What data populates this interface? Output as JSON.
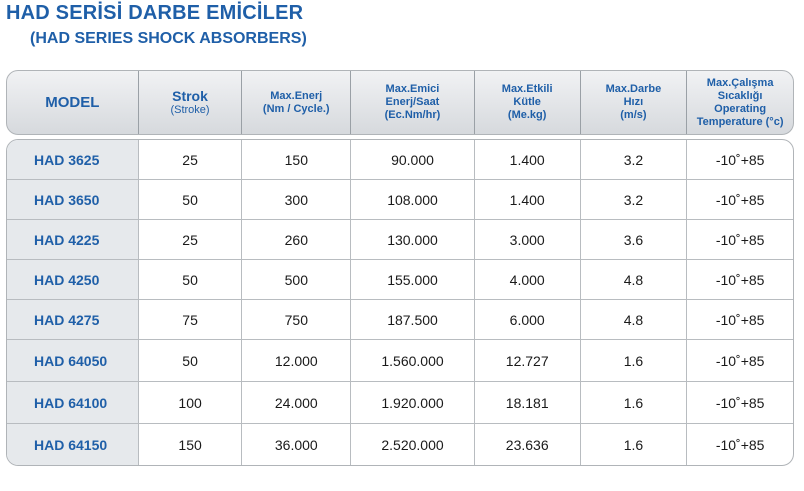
{
  "title": "HAD SERİSİ DARBE EMİCİLER",
  "subtitle": "(HAD SERIES SHOCK ABSORBERS)",
  "headers": {
    "model": "MODEL",
    "strok": "Strok",
    "strok_sub": "(Stroke)",
    "energy": "Max.Enerj\n(Nm / Cycle.)",
    "absorb": "Max.Emici\nEnerj/Saat\n(Ec.Nm/hr)",
    "mass": "Max.Etkili\nKütle\n(Me.kg)",
    "speed": "Max.Darbe\nHızı\n(m/s)",
    "temp": "Max.Çalışma\nSıcaklığı\nOperating\nTemperature (°c)"
  },
  "rows": [
    {
      "model": "HAD 3625",
      "strok": "25",
      "energy": "150",
      "absorb": "90.000",
      "mass": "1.400",
      "speed": "3.2",
      "temp": "-10˚+85"
    },
    {
      "model": "HAD 3650",
      "strok": "50",
      "energy": "300",
      "absorb": "108.000",
      "mass": "1.400",
      "speed": "3.2",
      "temp": "-10˚+85"
    },
    {
      "model": "HAD 4225",
      "strok": "25",
      "energy": "260",
      "absorb": "130.000",
      "mass": "3.000",
      "speed": "3.6",
      "temp": "-10˚+85"
    },
    {
      "model": "HAD 4250",
      "strok": "50",
      "energy": "500",
      "absorb": "155.000",
      "mass": "4.000",
      "speed": "4.8",
      "temp": "-10˚+85"
    },
    {
      "model": "HAD 4275",
      "strok": "75",
      "energy": "750",
      "absorb": "187.500",
      "mass": "6.000",
      "speed": "4.8",
      "temp": "-10˚+85"
    },
    {
      "model": "HAD 64050",
      "strok": "50",
      "energy": "12.000",
      "absorb": "1.560.000",
      "mass": "12.727",
      "speed": "1.6",
      "temp": "-10˚+85"
    },
    {
      "model": "HAD 64100",
      "strok": "100",
      "energy": "24.000",
      "absorb": "1.920.000",
      "mass": "18.181",
      "speed": "1.6",
      "temp": "-10˚+85"
    },
    {
      "model": "HAD 64150",
      "strok": "150",
      "energy": "36.000",
      "absorb": "2.520.000",
      "mass": "23.636",
      "speed": "1.6",
      "temp": "-10˚+85"
    }
  ]
}
